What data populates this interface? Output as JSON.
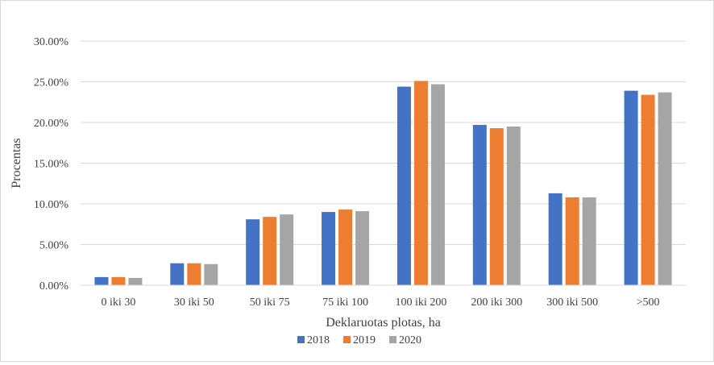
{
  "chart_data": {
    "type": "bar",
    "title": "",
    "xlabel": "Deklaruotas plotas, ha",
    "ylabel": "Procentas",
    "ylim": [
      0,
      30
    ],
    "y_tick_labels": [
      "0.00%",
      "5.00%",
      "10.00%",
      "15.00%",
      "20.00%",
      "25.00%",
      "30.00%"
    ],
    "y_tick_values": [
      0,
      5,
      10,
      15,
      20,
      25,
      30
    ],
    "grid": true,
    "legend_position": "bottom",
    "categories": [
      "0 iki 30",
      "30 iki 50",
      "50 iki 75",
      "75 iki 100",
      "100 iki 200",
      "200 iki 300",
      "300 iki 500",
      ">500"
    ],
    "series": [
      {
        "name": "2018",
        "color": "#4472C4",
        "values": [
          1.0,
          2.7,
          8.1,
          9.0,
          24.4,
          19.7,
          11.3,
          23.9
        ]
      },
      {
        "name": "2019",
        "color": "#ED7D31",
        "values": [
          1.0,
          2.7,
          8.4,
          9.3,
          25.1,
          19.3,
          10.8,
          23.4
        ]
      },
      {
        "name": "2020",
        "color": "#A5A5A5",
        "values": [
          0.9,
          2.6,
          8.7,
          9.1,
          24.7,
          19.5,
          10.8,
          23.7
        ]
      }
    ]
  }
}
